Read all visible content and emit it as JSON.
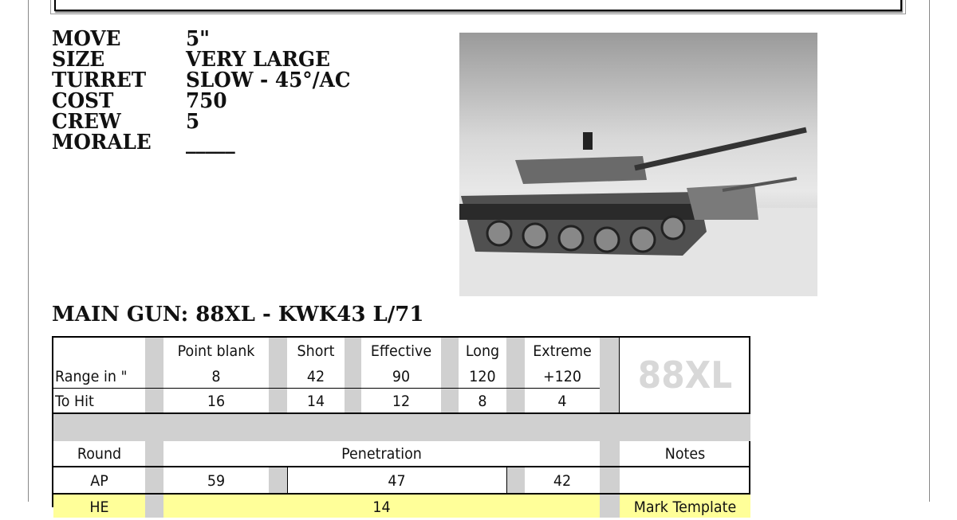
{
  "stats": [
    {
      "label": "MOVE",
      "value": "5\""
    },
    {
      "label": "SIZE",
      "value": "VERY LARGE"
    },
    {
      "label": "TURRET",
      "value": "SLOW - 45°/AC"
    },
    {
      "label": "COST",
      "value": "750"
    },
    {
      "label": "CREW",
      "value": "5"
    },
    {
      "label": "MORALE",
      "value": "_____"
    }
  ],
  "photo": {
    "description_icon": "tank-photo"
  },
  "main_gun": {
    "title": "MAIN GUN: 88XL - KWK43 L/71"
  },
  "table": {
    "range_headers": [
      "Point blank",
      "Short",
      "Effective",
      "Long",
      "Extreme"
    ],
    "range_label": "Range in \"",
    "ranges": [
      "8",
      "42",
      "90",
      "120",
      "+120"
    ],
    "tohit_label": "To Hit",
    "tohit": [
      "16",
      "14",
      "12",
      "8",
      "4"
    ],
    "gun_badge": "88XL",
    "round_header": "Round",
    "penetration_header": "Penetration",
    "notes_header": "Notes",
    "rows": [
      {
        "round": "AP",
        "pen": [
          "59",
          "47",
          "42"
        ],
        "notes": ""
      },
      {
        "round": "HE",
        "pen": [
          "14"
        ],
        "notes": "Mark Template"
      }
    ],
    "he_color": "#ffff99"
  }
}
